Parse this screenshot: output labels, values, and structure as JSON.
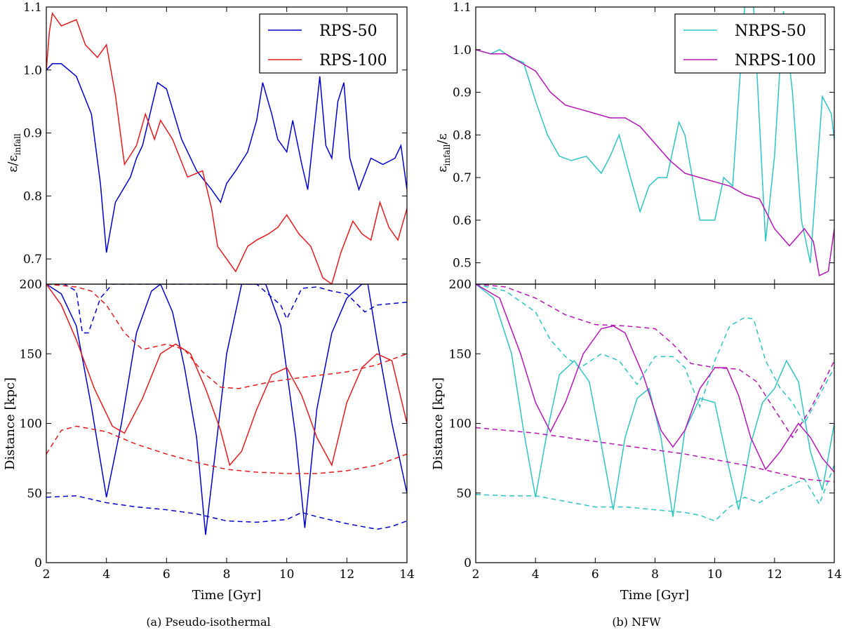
{
  "colors": {
    "blue": "#0000cc",
    "red": "#e41a1c",
    "cyan": "#2ec4c4",
    "magenta": "#b515b5",
    "axis": "#000000"
  },
  "panel_a": {
    "caption": "(a) Pseudo-isothermal",
    "legend": [
      "RPS-50",
      "RPS-100"
    ],
    "top_ylabel": "ε/ε",
    "top_ylabel_sub": "infall",
    "bottom_ylabel": "Distance [kpc]",
    "xlabel": "Time [Gyr]",
    "xticks": [
      "2",
      "4",
      "6",
      "8",
      "10",
      "12",
      "14"
    ],
    "top_yticks": [
      "0.7",
      "0.8",
      "0.9",
      "1.0",
      "1.1"
    ],
    "bottom_yticks": [
      "0",
      "50",
      "100",
      "150",
      "200"
    ]
  },
  "panel_b": {
    "caption": "(b) NFW",
    "legend": [
      "NRPS-50",
      "NRPS-100"
    ],
    "top_ylabel": "ε",
    "top_ylabel_sub": "infall",
    "top_ylabel_tail": "/ε",
    "bottom_ylabel": "Distance [kpc]",
    "xlabel": "Time [Gyr]",
    "xticks": [
      "2",
      "4",
      "6",
      "8",
      "10",
      "12",
      "14"
    ],
    "top_yticks": [
      "0.5",
      "0.6",
      "0.7",
      "0.8",
      "0.9",
      "1.0",
      "1.1"
    ],
    "bottom_yticks": [
      "0",
      "50",
      "100",
      "150",
      "200"
    ]
  },
  "chart_data": [
    {
      "type": "line",
      "panel": "a-top",
      "xlim": [
        2,
        14
      ],
      "ylim": [
        0.66,
        1.1
      ],
      "series": [
        {
          "name": "RPS-50",
          "color": "blue",
          "style": "solid",
          "x": [
            2,
            2.2,
            2.5,
            3,
            3.5,
            3.8,
            4,
            4.3,
            4.8,
            5,
            5.2,
            5.5,
            5.7,
            6,
            6.5,
            7,
            7.5,
            7.8,
            8,
            8.3,
            8.7,
            9,
            9.2,
            9.5,
            9.7,
            10,
            10.2,
            10.5,
            10.7,
            10.9,
            11.1,
            11.3,
            11.5,
            11.7,
            11.9,
            12.1,
            12.4,
            12.8,
            13.2,
            13.6,
            13.8,
            14
          ],
          "y": [
            1.0,
            1.01,
            1.01,
            0.99,
            0.93,
            0.82,
            0.71,
            0.79,
            0.83,
            0.86,
            0.88,
            0.94,
            0.98,
            0.97,
            0.89,
            0.84,
            0.81,
            0.79,
            0.82,
            0.84,
            0.87,
            0.92,
            0.98,
            0.93,
            0.89,
            0.87,
            0.92,
            0.85,
            0.81,
            0.9,
            0.99,
            0.88,
            0.86,
            0.95,
            0.98,
            0.86,
            0.81,
            0.86,
            0.85,
            0.86,
            0.88,
            0.81
          ]
        },
        {
          "name": "RPS-100",
          "color": "red",
          "style": "solid",
          "x": [
            2,
            2.1,
            2.2,
            2.5,
            3,
            3.3,
            3.7,
            4,
            4.3,
            4.6,
            5,
            5.3,
            5.6,
            5.8,
            6.2,
            6.7,
            7.2,
            7.5,
            7.7,
            8,
            8.3,
            8.7,
            9,
            9.4,
            9.7,
            10,
            10.4,
            10.8,
            11.2,
            11.5,
            11.8,
            12.2,
            12.5,
            12.8,
            13.1,
            13.4,
            13.7,
            14
          ],
          "y": [
            1.0,
            1.06,
            1.09,
            1.07,
            1.08,
            1.04,
            1.02,
            1.04,
            0.96,
            0.85,
            0.88,
            0.93,
            0.89,
            0.92,
            0.89,
            0.83,
            0.84,
            0.78,
            0.72,
            0.7,
            0.68,
            0.72,
            0.73,
            0.74,
            0.75,
            0.77,
            0.74,
            0.72,
            0.67,
            0.66,
            0.71,
            0.76,
            0.74,
            0.73,
            0.79,
            0.75,
            0.73,
            0.78
          ]
        }
      ]
    },
    {
      "type": "line",
      "panel": "a-bottom",
      "xlim": [
        2,
        14
      ],
      "ylim": [
        0,
        200
      ],
      "series": [
        {
          "name": "RPS-50",
          "color": "blue",
          "style": "solid",
          "x": [
            2,
            2.5,
            3,
            3.5,
            4,
            4.5,
            5,
            5.5,
            5.8,
            6.2,
            6.6,
            7,
            7.3,
            7.6,
            8,
            8.5,
            9,
            9.3,
            9.8,
            10.3,
            10.6,
            11,
            11.5,
            12,
            12.5,
            12.7,
            13,
            13.5,
            14
          ],
          "y": [
            200,
            193,
            170,
            112,
            47,
            100,
            165,
            195,
            200,
            180,
            140,
            90,
            20,
            75,
            150,
            200,
            200,
            200,
            170,
            90,
            25,
            110,
            165,
            190,
            200,
            200,
            160,
            100,
            50
          ]
        },
        {
          "name": "RPS-50 pericentre",
          "color": "blue",
          "style": "dashed",
          "x": [
            2,
            3,
            4,
            5,
            6,
            7,
            8,
            9,
            10,
            10.5,
            11,
            12,
            13,
            13.5,
            14
          ],
          "y": [
            47,
            48,
            43,
            40,
            38,
            35,
            30,
            29,
            31,
            36,
            33,
            28,
            24,
            26,
            30
          ]
        },
        {
          "name": "RPS-50 apocentre",
          "color": "blue",
          "style": "dashed",
          "x": [
            2,
            2.6,
            3,
            3.2,
            3.4,
            3.8,
            4.2,
            5,
            6,
            7,
            8,
            9,
            9.8,
            10,
            10.5,
            11,
            11.5,
            12,
            12.6,
            13,
            13.5,
            14
          ],
          "y": [
            200,
            200,
            195,
            165,
            165,
            190,
            200,
            200,
            200,
            200,
            200,
            200,
            185,
            175,
            197,
            198,
            195,
            193,
            180,
            185,
            186,
            187
          ]
        },
        {
          "name": "RPS-100",
          "color": "red",
          "style": "solid",
          "x": [
            2,
            2.5,
            3,
            3.6,
            4.2,
            4.6,
            5.2,
            5.8,
            6.3,
            6.8,
            7.3,
            7.8,
            8.1,
            8.5,
            9,
            9.5,
            10,
            10.5,
            11,
            11.5,
            12,
            12.5,
            13,
            13.5,
            14
          ],
          "y": [
            200,
            185,
            160,
            125,
            98,
            93,
            118,
            150,
            157,
            150,
            125,
            95,
            70,
            80,
            110,
            135,
            140,
            120,
            90,
            70,
            115,
            140,
            150,
            145,
            100
          ]
        },
        {
          "name": "RPS-100 pericentre",
          "color": "red",
          "style": "dashed",
          "x": [
            2,
            2.5,
            3,
            4,
            5,
            6,
            7,
            8,
            9,
            10,
            11,
            12,
            13,
            14
          ],
          "y": [
            78,
            95,
            98,
            94,
            85,
            78,
            72,
            67,
            65,
            64,
            64,
            66,
            70,
            78
          ]
        },
        {
          "name": "RPS-100 apocentre",
          "color": "red",
          "style": "dashed",
          "x": [
            2,
            3,
            3.5,
            4,
            4.6,
            5.2,
            6,
            6.6,
            7.2,
            7.8,
            8.4,
            9.5,
            10.5,
            12,
            13,
            14
          ],
          "y": [
            200,
            198,
            195,
            185,
            165,
            153,
            157,
            153,
            137,
            126,
            125,
            130,
            133,
            137,
            142,
            150
          ]
        }
      ]
    },
    {
      "type": "line",
      "panel": "b-top",
      "xlim": [
        2,
        14
      ],
      "ylim": [
        0.45,
        1.1
      ],
      "series": [
        {
          "name": "NRPS-50",
          "color": "cyan",
          "style": "solid",
          "x": [
            2,
            2.5,
            2.8,
            3.2,
            3.6,
            4,
            4.4,
            4.8,
            5.2,
            5.7,
            6.2,
            6.5,
            6.8,
            7.1,
            7.5,
            7.8,
            8.1,
            8.4,
            8.8,
            9,
            9.5,
            10,
            10.3,
            10.6,
            11,
            11.3,
            11.7,
            12,
            12.3,
            12.6,
            12.9,
            13.2,
            13.6,
            13.9,
            14
          ],
          "y": [
            1.0,
            0.99,
            1.0,
            0.98,
            0.97,
            0.88,
            0.8,
            0.75,
            0.74,
            0.75,
            0.71,
            0.75,
            0.8,
            0.72,
            0.62,
            0.68,
            0.7,
            0.7,
            0.83,
            0.8,
            0.6,
            0.6,
            0.7,
            0.68,
            1.1,
            1.1,
            0.55,
            0.75,
            1.09,
            0.9,
            0.6,
            0.5,
            0.89,
            0.85,
            0.79
          ]
        },
        {
          "name": "NRPS-100",
          "color": "magenta",
          "style": "solid",
          "x": [
            2,
            2.5,
            3,
            3.5,
            4,
            4.5,
            5,
            5.5,
            6,
            6.5,
            7,
            7.5,
            8,
            8.5,
            9,
            9.5,
            10,
            10.5,
            11,
            11.5,
            12,
            12.5,
            13,
            13.3,
            13.5,
            13.8,
            14
          ],
          "y": [
            1.0,
            0.99,
            0.99,
            0.97,
            0.95,
            0.9,
            0.87,
            0.86,
            0.85,
            0.84,
            0.84,
            0.82,
            0.78,
            0.74,
            0.71,
            0.7,
            0.69,
            0.68,
            0.66,
            0.65,
            0.58,
            0.54,
            0.58,
            0.55,
            0.47,
            0.48,
            0.58
          ]
        }
      ]
    },
    {
      "type": "line",
      "panel": "b-bottom",
      "xlim": [
        2,
        14
      ],
      "ylim": [
        0,
        200
      ],
      "series": [
        {
          "name": "NRPS-50",
          "color": "cyan",
          "style": "solid",
          "x": [
            2,
            2.6,
            3.2,
            3.6,
            4,
            4.4,
            4.8,
            5.3,
            5.8,
            6.2,
            6.6,
            7,
            7.4,
            7.8,
            8.2,
            8.6,
            9,
            9.5,
            10,
            10.4,
            10.8,
            11.2,
            11.6,
            12,
            12.4,
            12.8,
            13.2,
            13.6,
            14
          ],
          "y": [
            200,
            190,
            150,
            95,
            47,
            95,
            135,
            145,
            130,
            85,
            38,
            90,
            118,
            125,
            90,
            33,
            95,
            118,
            115,
            75,
            38,
            85,
            115,
            125,
            145,
            130,
            80,
            52,
            100
          ]
        },
        {
          "name": "NRPS-50 pericentre",
          "color": "cyan",
          "style": "dashed",
          "x": [
            2,
            3,
            4,
            5,
            6,
            7,
            8,
            9,
            9.5,
            10,
            10.5,
            11,
            11.5,
            12,
            12.5,
            13,
            13.5,
            14
          ],
          "y": [
            49,
            48,
            48,
            44,
            40,
            40,
            38,
            36,
            34,
            30,
            40,
            47,
            43,
            50,
            55,
            60,
            42,
            70
          ]
        },
        {
          "name": "NRPS-50 apocentre",
          "color": "cyan",
          "style": "dashed",
          "x": [
            2,
            3,
            4,
            4.5,
            5,
            5.5,
            6.2,
            6.8,
            7.4,
            8,
            8.6,
            9,
            9.5,
            10,
            10.5,
            11,
            11.3,
            11.7,
            12.2,
            12.6,
            13,
            13.5,
            14
          ],
          "y": [
            200,
            195,
            180,
            160,
            148,
            140,
            150,
            145,
            128,
            148,
            148,
            140,
            112,
            145,
            170,
            176,
            175,
            145,
            125,
            115,
            100,
            120,
            140
          ]
        },
        {
          "name": "NRPS-100",
          "color": "magenta",
          "style": "solid",
          "x": [
            2,
            2.8,
            3.5,
            4,
            4.5,
            5,
            5.6,
            6.2,
            6.6,
            7,
            7.6,
            8.2,
            8.6,
            9,
            9.5,
            10,
            10.4,
            10.8,
            11.2,
            11.7,
            12.2,
            12.8,
            13.2,
            13.6,
            14
          ],
          "y": [
            200,
            190,
            150,
            115,
            94,
            115,
            150,
            168,
            170,
            165,
            135,
            95,
            83,
            95,
            125,
            140,
            140,
            120,
            90,
            67,
            80,
            100,
            90,
            75,
            65
          ]
        },
        {
          "name": "NRPS-100 pericentre",
          "color": "magenta",
          "style": "dashed",
          "x": [
            2,
            3,
            4,
            5,
            6,
            7,
            8,
            9,
            10,
            11,
            12,
            13,
            14
          ],
          "y": [
            97,
            95,
            93,
            90,
            87,
            84,
            81,
            78,
            74,
            70,
            65,
            60,
            58
          ]
        },
        {
          "name": "NRPS-100 apocentre",
          "color": "magenta",
          "style": "dashed",
          "x": [
            2,
            3,
            4,
            5,
            6,
            7,
            8,
            8.6,
            9.2,
            10,
            10.8,
            11.4,
            12,
            12.6,
            13.2,
            14
          ],
          "y": [
            200,
            198,
            190,
            178,
            171,
            170,
            168,
            157,
            143,
            140,
            139,
            130,
            110,
            90,
            110,
            145
          ]
        }
      ]
    }
  ]
}
